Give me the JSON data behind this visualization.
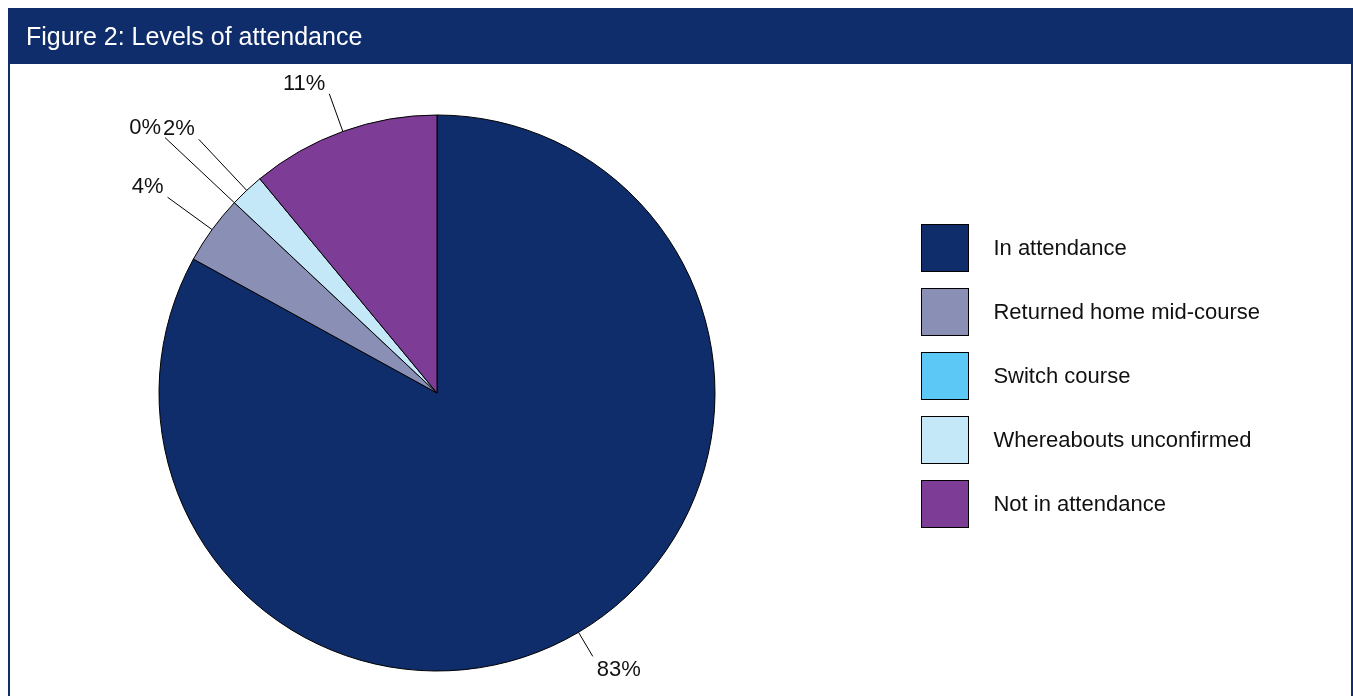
{
  "chart_data": {
    "type": "pie",
    "title": "Figure 2: Levels of attendance",
    "categories": [
      "In attendance",
      "Returned home mid-course",
      "Switch course",
      "Whereabouts unconfirmed",
      "Not in attendance"
    ],
    "values": [
      83,
      4,
      0,
      2,
      11
    ],
    "value_labels": [
      "83%",
      "4%",
      "0%",
      "2%",
      "11%"
    ],
    "colors": [
      "#0f2c6b",
      "#8a90b5",
      "#5bc8f5",
      "#c5e8f8",
      "#7d3c96"
    ],
    "legend": "right"
  }
}
